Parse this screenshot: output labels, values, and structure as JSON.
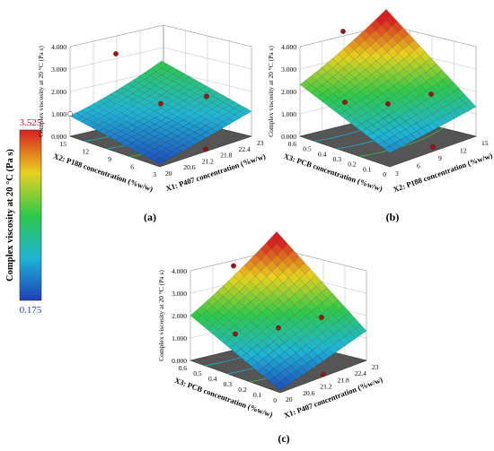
{
  "colorbar": {
    "label": "Complex viscosity at 20 °C (Pa s)",
    "max": "3.525",
    "min": "0.175",
    "max_color": "#c8102e",
    "min_color": "#1f3fb8"
  },
  "chart_data": [
    {
      "type": "surface3d",
      "panel_label": "(a)",
      "zlabel": "Complex viscosity at 20 °C (Pa s)",
      "z_ticks": [
        "4.000",
        "3.000",
        "2.000",
        "1.000",
        "0.000"
      ],
      "zlim": [
        0,
        4
      ],
      "y_axis": {
        "label": "X2: P188 concentration (%w/w)",
        "ticks": [
          "3",
          "6",
          "9",
          "12",
          "15"
        ],
        "range": [
          3,
          15
        ]
      },
      "x_axis": {
        "label": "X1: P407 concentration (%w/w)",
        "ticks": [
          "20",
          "20.6",
          "21.2",
          "21.8",
          "22.4",
          "23"
        ],
        "range": [
          20,
          23
        ]
      },
      "surface_corners_z": {
        "y_high_x_low": 0.8,
        "y_high_x_high": 1.9,
        "y_low_x_high": 1.1,
        "y_low_x_low": 0.1
      },
      "design_points": [
        {
          "x1": 21.5,
          "x2": 9,
          "z": 1.45
        },
        {
          "x1": 20,
          "x2": 15,
          "z": 1.0
        },
        {
          "x1": 21.5,
          "x2": 15,
          "z": 3.0
        },
        {
          "x1": 23,
          "x2": 9,
          "z": 1.1
        },
        {
          "x1": 21.5,
          "x2": 3,
          "z": 0.1
        }
      ]
    },
    {
      "type": "surface3d",
      "panel_label": "(b)",
      "zlabel": "Complex viscosity at 20 °C (Pa s)",
      "z_ticks": [
        "4.000",
        "3.000",
        "2.000",
        "1.000",
        "0.000"
      ],
      "zlim": [
        0,
        4
      ],
      "y_axis": {
        "label": "X3: PCB concentration (%w/w)",
        "ticks": [
          "0",
          "0.1",
          "0.2",
          "0.3",
          "0.4",
          "0.5",
          "0.6"
        ],
        "range": [
          0,
          0.6
        ]
      },
      "x_axis": {
        "label": "X2: P188 concentration (%w/w)",
        "ticks": [
          "3",
          "6",
          "9",
          "12",
          "15"
        ],
        "range": [
          3,
          15
        ]
      },
      "surface_corners_z": {
        "y_high_x_low": 2.2,
        "y_high_x_high": 4.2,
        "y_low_x_high": 1.3,
        "y_low_x_low": 0.6
      },
      "design_points": [
        {
          "x2": 9,
          "x3": 0.3,
          "z": 1.45
        },
        {
          "x2": 9,
          "x3": 0.6,
          "z": 4.0
        },
        {
          "x2": 3,
          "x3": 0.3,
          "z": 2.2
        },
        {
          "x2": 15,
          "x3": 0.3,
          "z": 1.2
        },
        {
          "x2": 9,
          "x3": 0,
          "z": 0.2
        }
      ]
    },
    {
      "type": "surface3d",
      "panel_label": "(c)",
      "zlabel": "Complex viscosity at 20 °C (Pa s)",
      "z_ticks": [
        "4.000",
        "3.000",
        "2.000",
        "1.000",
        "0.000"
      ],
      "zlim": [
        0,
        4
      ],
      "y_axis": {
        "label": "X3: PCB concentration (%w/w)",
        "ticks": [
          "0",
          "0.1",
          "0.2",
          "0.3",
          "0.4",
          "0.5",
          "0.6"
        ],
        "range": [
          0,
          0.6
        ]
      },
      "x_axis": {
        "label": "X1: P407 concentration (%w/w)",
        "ticks": [
          "20",
          "20.6",
          "21.2",
          "21.8",
          "22.4",
          "23"
        ],
        "range": [
          20,
          23
        ]
      },
      "surface_corners_z": {
        "y_high_x_low": 1.9,
        "y_high_x_high": 4.2,
        "y_low_x_high": 1.3,
        "y_low_x_low": 0.1
      },
      "design_points": [
        {
          "x1": 21.5,
          "x3": 0.3,
          "z": 1.45
        },
        {
          "x1": 23,
          "x3": 0.3,
          "z": 1.2
        },
        {
          "x1": 20,
          "x3": 0.3,
          "z": 1.9
        },
        {
          "x1": 21.5,
          "x3": 0.6,
          "z": 3.5
        },
        {
          "x1": 21.5,
          "x3": 0,
          "z": 0.1
        }
      ]
    }
  ]
}
